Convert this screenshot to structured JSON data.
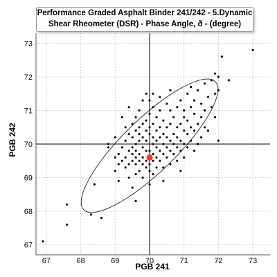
{
  "chart_data": {
    "type": "scatter",
    "title": "Performance Graded Asphalt Binder 241/242 - 5.Dynamic",
    "subtitle": "Shear Rheometer (DSR) - Phase Angle, ð - (degree)",
    "xlabel": "PGB 241",
    "ylabel": "PGB 242",
    "xlim": [
      66.7,
      73.5
    ],
    "ylim": [
      66.7,
      73.3
    ],
    "xticks": [
      "67",
      "68",
      "69",
      "70",
      "71",
      "72",
      "73"
    ],
    "yticks": [
      "67",
      "68",
      "69",
      "70",
      "71",
      "72",
      "73"
    ],
    "grid": true,
    "crosshair": {
      "x": 70.0,
      "y": 70.0
    },
    "mean_point": {
      "x": 70.0,
      "y": 69.6
    },
    "ellipse": {
      "center_x": 70.0,
      "center_y": 69.95,
      "semi_major": 2.7,
      "semi_minor": 0.78,
      "angle_deg": 45
    },
    "colors": {
      "points": "#111111",
      "mean": "#e53d2f",
      "ellipse": "#333333",
      "grid": "#d0d0d0",
      "crosshair": "#000000"
    },
    "series": [
      {
        "points": [
          [
            66.9,
            67.1
          ],
          [
            67.6,
            67.6
          ],
          [
            67.6,
            68.2
          ],
          [
            68.3,
            67.9
          ],
          [
            68.6,
            67.8
          ],
          [
            68.4,
            68.8
          ],
          [
            68.8,
            69.9
          ],
          [
            68.8,
            70.0
          ],
          [
            69.0,
            69.2
          ],
          [
            69.0,
            69.6
          ],
          [
            69.0,
            70.2
          ],
          [
            69.1,
            68.9
          ],
          [
            69.1,
            69.4
          ],
          [
            69.1,
            69.7
          ],
          [
            69.2,
            69.5
          ],
          [
            69.2,
            69.9
          ],
          [
            69.3,
            69.3
          ],
          [
            69.3,
            69.6
          ],
          [
            69.3,
            70.1
          ],
          [
            69.3,
            70.5
          ],
          [
            69.4,
            69.4
          ],
          [
            69.4,
            69.8
          ],
          [
            69.4,
            69.0
          ],
          [
            69.4,
            70.3
          ],
          [
            69.5,
            68.7
          ],
          [
            69.5,
            69.5
          ],
          [
            69.5,
            69.7
          ],
          [
            69.5,
            69.9
          ],
          [
            69.5,
            70.2
          ],
          [
            69.5,
            70.6
          ],
          [
            69.6,
            68.3
          ],
          [
            69.6,
            69.1
          ],
          [
            69.6,
            69.4
          ],
          [
            69.6,
            69.6
          ],
          [
            69.6,
            69.8
          ],
          [
            69.6,
            70.0
          ],
          [
            69.6,
            70.4
          ],
          [
            69.6,
            70.8
          ],
          [
            69.7,
            69.2
          ],
          [
            69.7,
            69.5
          ],
          [
            69.7,
            69.7
          ],
          [
            69.7,
            70.1
          ],
          [
            69.7,
            70.3
          ],
          [
            69.7,
            70.5
          ],
          [
            69.7,
            71.0
          ],
          [
            69.8,
            69.0
          ],
          [
            69.8,
            69.4
          ],
          [
            69.8,
            69.6
          ],
          [
            69.8,
            69.9
          ],
          [
            69.8,
            70.2
          ],
          [
            69.8,
            70.6
          ],
          [
            69.8,
            71.3
          ],
          [
            69.9,
            69.3
          ],
          [
            69.9,
            69.5
          ],
          [
            69.9,
            69.8
          ],
          [
            69.9,
            70.1
          ],
          [
            69.9,
            70.4
          ],
          [
            69.9,
            70.7
          ],
          [
            70.0,
            68.8
          ],
          [
            70.0,
            69.2
          ],
          [
            70.0,
            69.4
          ],
          [
            70.0,
            69.8
          ],
          [
            70.0,
            70.3
          ],
          [
            70.0,
            70.5
          ],
          [
            70.0,
            70.9
          ],
          [
            70.0,
            71.3
          ],
          [
            70.1,
            69.1
          ],
          [
            70.1,
            69.5
          ],
          [
            70.1,
            69.7
          ],
          [
            70.1,
            70.0
          ],
          [
            70.1,
            70.2
          ],
          [
            70.1,
            70.6
          ],
          [
            70.1,
            71.1
          ],
          [
            70.1,
            71.5
          ],
          [
            70.2,
            69.3
          ],
          [
            70.2,
            69.6
          ],
          [
            70.2,
            69.9
          ],
          [
            70.2,
            70.1
          ],
          [
            70.2,
            70.4
          ],
          [
            70.2,
            70.8
          ],
          [
            70.3,
            69.5
          ],
          [
            70.3,
            69.8
          ],
          [
            70.3,
            70.2
          ],
          [
            70.3,
            70.5
          ],
          [
            70.3,
            71.0
          ],
          [
            70.4,
            69.3
          ],
          [
            70.4,
            69.7
          ],
          [
            70.4,
            70.0
          ],
          [
            70.4,
            70.3
          ],
          [
            70.4,
            70.7
          ],
          [
            70.5,
            69.6
          ],
          [
            70.5,
            69.9
          ],
          [
            70.5,
            70.2
          ],
          [
            70.5,
            70.5
          ],
          [
            70.5,
            71.2
          ],
          [
            70.6,
            69.4
          ],
          [
            70.6,
            69.8
          ],
          [
            70.6,
            70.1
          ],
          [
            70.6,
            70.6
          ],
          [
            70.6,
            71.0
          ],
          [
            70.7,
            69.7
          ],
          [
            70.7,
            70.0
          ],
          [
            70.7,
            70.3
          ],
          [
            70.7,
            70.8
          ],
          [
            70.8,
            69.5
          ],
          [
            70.8,
            69.9
          ],
          [
            70.8,
            70.2
          ],
          [
            70.8,
            70.5
          ],
          [
            70.8,
            71.1
          ],
          [
            70.9,
            69.8
          ],
          [
            70.9,
            70.1
          ],
          [
            70.9,
            70.6
          ],
          [
            70.9,
            71.3
          ],
          [
            71.0,
            69.6
          ],
          [
            71.0,
            70.0
          ],
          [
            71.0,
            70.4
          ],
          [
            71.0,
            70.8
          ],
          [
            71.0,
            71.0
          ],
          [
            71.1,
            69.9
          ],
          [
            71.1,
            70.3
          ],
          [
            71.1,
            70.7
          ],
          [
            71.1,
            71.5
          ],
          [
            71.2,
            70.1
          ],
          [
            71.2,
            70.5
          ],
          [
            71.2,
            71.1
          ],
          [
            71.3,
            69.8
          ],
          [
            71.3,
            70.4
          ],
          [
            71.3,
            70.9
          ],
          [
            71.3,
            71.3
          ],
          [
            71.4,
            70.0
          ],
          [
            71.4,
            70.6
          ],
          [
            71.4,
            71.6
          ],
          [
            71.5,
            70.2
          ],
          [
            71.5,
            70.8
          ],
          [
            71.5,
            71.2
          ],
          [
            71.6,
            70.5
          ],
          [
            71.6,
            71.0
          ],
          [
            71.6,
            71.8
          ],
          [
            71.7,
            70.4
          ],
          [
            71.7,
            71.4
          ],
          [
            71.8,
            71.9
          ],
          [
            71.8,
            71.1
          ],
          [
            71.9,
            71.5
          ],
          [
            71.9,
            70.8
          ],
          [
            71.9,
            72.1
          ],
          [
            72.0,
            71.6
          ],
          [
            72.0,
            72.0
          ],
          [
            72.0,
            70.1
          ],
          [
            72.1,
            72.6
          ],
          [
            72.3,
            71.9
          ],
          [
            73.0,
            72.8
          ],
          [
            69.2,
            70.8
          ],
          [
            69.4,
            71.1
          ],
          [
            69.9,
            71.5
          ],
          [
            70.3,
            71.4
          ],
          [
            70.6,
            71.6
          ],
          [
            71.2,
            71.7
          ],
          [
            70.4,
            68.9
          ],
          [
            70.9,
            69.2
          ]
        ]
      }
    ]
  }
}
